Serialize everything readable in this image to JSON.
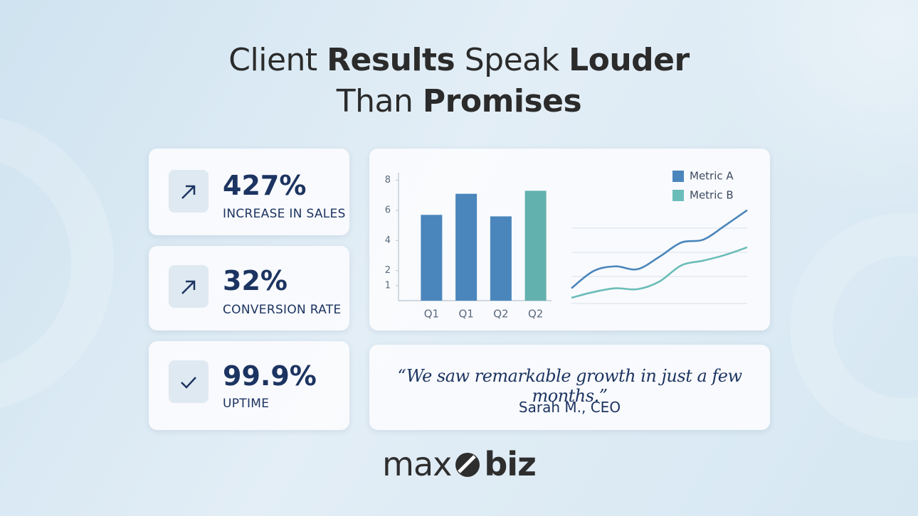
{
  "header": {
    "title_lines": [
      [
        {
          "text": "Client",
          "bold": false
        },
        {
          "text": "Results",
          "bold": true
        },
        {
          "text": "Speak",
          "bold": false
        },
        {
          "text": "Louder",
          "bold": true
        }
      ],
      [
        {
          "text": "Than",
          "bold": false
        },
        {
          "text": "Promises",
          "bold": true
        }
      ]
    ]
  },
  "stats": [
    {
      "value": "427%",
      "label": "INCREASE IN SALES"
    },
    {
      "value": "32%",
      "label": "CONVERSION RATE"
    },
    {
      "value": "99.9%",
      "label": "UPTIME"
    }
  ],
  "chart_data": [
    {
      "type": "bar",
      "categories": [
        "Q1",
        "Q1",
        "Q2",
        "Q2"
      ],
      "values": [
        5.7,
        7.1,
        5.6,
        7.3
      ],
      "colors": [
        "#4a86bc",
        "#4a86bc",
        "#4a86bc",
        "#62b1ae"
      ],
      "ylim": [
        0,
        8.5
      ],
      "yticks": [
        1,
        2,
        4,
        6,
        8
      ]
    },
    {
      "type": "line",
      "x": [
        0,
        1,
        2,
        3,
        4,
        5,
        6,
        7,
        8
      ],
      "xlim": [
        0,
        8
      ],
      "ylim": [
        0,
        10
      ],
      "series": [
        {
          "name": "Metric A",
          "color": "#4a86bc",
          "values": [
            1.6,
            3.4,
            3.9,
            3.6,
            4.9,
            6.4,
            6.7,
            8.2,
            9.8
          ]
        },
        {
          "name": "Metric B",
          "color": "#6abdb8",
          "values": [
            0.6,
            1.2,
            1.6,
            1.5,
            2.3,
            4.0,
            4.5,
            5.1,
            5.9
          ]
        }
      ]
    }
  ],
  "quote": {
    "text": "“We saw remarkable growth in just a few months.”",
    "author": "Sarah M., CEO"
  },
  "logo": {
    "left": "max",
    "right": "biz"
  }
}
